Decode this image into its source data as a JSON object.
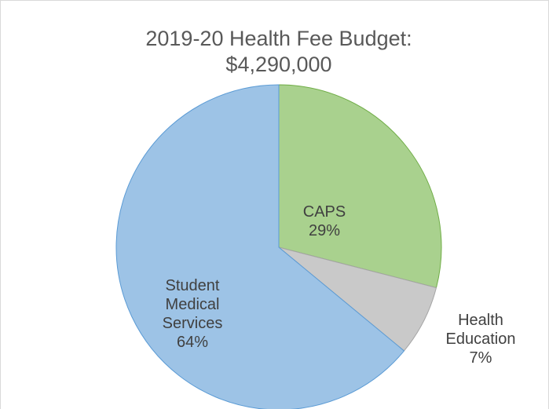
{
  "chart_data": {
    "type": "pie",
    "title": [
      "2019-20 Health Fee Budget:",
      "$4,290,000"
    ],
    "categories": [
      "CAPS",
      "Health Education",
      "Student Medical Services"
    ],
    "values": [
      29,
      7,
      64
    ],
    "value_labels": [
      "29%",
      "7%",
      "64%"
    ],
    "colors": [
      "#a9d18e",
      "#c9c9c9",
      "#9dc3e6"
    ],
    "edge_colors": [
      "#70ad47",
      "#a5a5a5",
      "#5b9bd5"
    ]
  }
}
